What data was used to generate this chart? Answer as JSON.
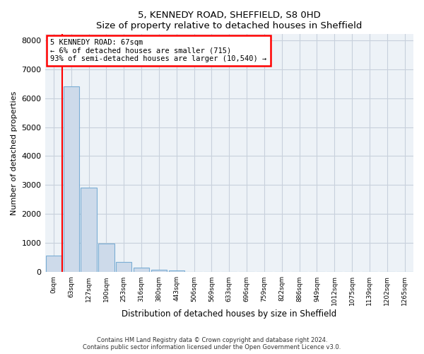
{
  "title1": "5, KENNEDY ROAD, SHEFFIELD, S8 0HD",
  "title2": "Size of property relative to detached houses in Sheffield",
  "xlabel": "Distribution of detached houses by size in Sheffield",
  "ylabel": "Number of detached properties",
  "bar_labels": [
    "0sqm",
    "63sqm",
    "127sqm",
    "190sqm",
    "253sqm",
    "316sqm",
    "380sqm",
    "443sqm",
    "506sqm",
    "569sqm",
    "633sqm",
    "696sqm",
    "759sqm",
    "822sqm",
    "886sqm",
    "949sqm",
    "1012sqm",
    "1075sqm",
    "1139sqm",
    "1202sqm",
    "1265sqm"
  ],
  "bar_values": [
    580,
    6400,
    2920,
    980,
    360,
    160,
    95,
    70,
    0,
    0,
    0,
    0,
    0,
    0,
    0,
    0,
    0,
    0,
    0,
    0,
    0
  ],
  "bar_color": "#cddaea",
  "bar_edge_color": "#7aadd4",
  "annotation_line1": "5 KENNEDY ROAD: 67sqm",
  "annotation_line2": "← 6% of detached houses are smaller (715)",
  "annotation_line3": "93% of semi-detached houses are larger (10,540) →",
  "annotation_box_color": "white",
  "annotation_box_edge_color": "red",
  "property_vline_color": "red",
  "property_vline_x": 0.5,
  "ylim": [
    0,
    8200
  ],
  "yticks": [
    0,
    1000,
    2000,
    3000,
    4000,
    5000,
    6000,
    7000,
    8000
  ],
  "footer_line1": "Contains HM Land Registry data © Crown copyright and database right 2024.",
  "footer_line2": "Contains public sector information licensed under the Open Government Licence v3.0.",
  "bg_color": "#edf2f7",
  "grid_color": "#c8d0dc"
}
